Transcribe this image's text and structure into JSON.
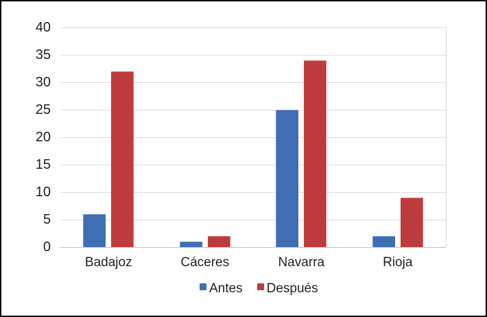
{
  "chart_data": {
    "type": "bar",
    "title": "",
    "categories": [
      "Badajoz",
      "Cáceres",
      "Navarra",
      "Rioja"
    ],
    "series": [
      {
        "name": "Antes",
        "color": "#3E6FB4",
        "values": [
          6,
          1,
          25,
          2
        ]
      },
      {
        "name": "Después",
        "color": "#BE3B3D",
        "values": [
          32,
          2,
          34,
          9
        ]
      }
    ],
    "xlabel": "",
    "ylabel": "",
    "ylim": [
      0,
      40
    ],
    "yticks": [
      0,
      5,
      10,
      15,
      20,
      25,
      30,
      35,
      40
    ],
    "grid": "horizontal",
    "legend_position": "bottom",
    "colors": {
      "gridline": "#D9D9D9",
      "axis_line": "#BDBDBD",
      "text": "#1F1F1F",
      "background": "#FFFFFF",
      "frame_border": "#000000"
    }
  }
}
